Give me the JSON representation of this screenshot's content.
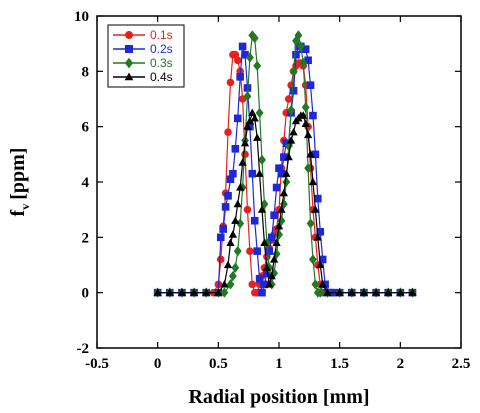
{
  "chart_data": {
    "type": "line",
    "xlabel": "Radial position [mm]",
    "ylabel": "f",
    "ylabel_sub": "v",
    "ylabel_unit": "[ppm]",
    "xlim": [
      -0.5,
      2.5
    ],
    "ylim": [
      -2,
      10
    ],
    "xticks": [
      -0.5,
      0,
      0.5,
      1,
      1.5,
      2,
      2.5
    ],
    "xtick_labels": [
      "-0.5",
      "0",
      "0.5",
      "1",
      "1.5",
      "2",
      "2.5"
    ],
    "yticks": [
      -2,
      0,
      2,
      4,
      6,
      8,
      10
    ],
    "ytick_labels": [
      "-2",
      "0",
      "2",
      "4",
      "6",
      "8",
      "10"
    ],
    "grid": false,
    "legend_position": "top-left",
    "series": [
      {
        "name": "0.1s",
        "color": "#e8201e",
        "marker": "circle",
        "x": [
          0,
          0.1,
          0.2,
          0.3,
          0.4,
          0.46,
          0.5,
          0.52,
          0.54,
          0.56,
          0.58,
          0.6,
          0.62,
          0.64,
          0.66,
          0.68,
          0.7,
          0.72,
          0.74,
          0.76,
          0.78,
          0.8,
          0.82,
          0.84,
          0.86,
          0.88,
          0.9,
          0.92,
          0.94,
          0.96,
          0.98,
          1.0,
          1.02,
          1.04,
          1.06,
          1.08,
          1.1,
          1.12,
          1.14,
          1.16,
          1.18,
          1.2,
          1.22,
          1.24,
          1.26,
          1.28,
          1.3,
          1.32,
          1.34,
          1.36,
          1.4,
          1.5,
          1.6,
          1.7,
          1.8,
          1.9,
          2.0,
          2.1
        ],
        "y": [
          0,
          0,
          0,
          0,
          0,
          0,
          0.3,
          1.2,
          2.4,
          3.6,
          5.8,
          7.6,
          8.6,
          8.6,
          8.4,
          8.0,
          7.0,
          5.0,
          3.0,
          1.5,
          0.3,
          0,
          0,
          0.3,
          0.6,
          0.9,
          1.3,
          1.6,
          1.9,
          2.1,
          2.3,
          3.0,
          4.5,
          5.5,
          6.5,
          7.0,
          7.5,
          8.0,
          8.2,
          8.3,
          8.3,
          8.2,
          7.5,
          6.0,
          4.5,
          3.0,
          2.0,
          1.0,
          0.3,
          0,
          0,
          0,
          0,
          0,
          0,
          0,
          0,
          0
        ]
      },
      {
        "name": "0.2s",
        "color": "#1e28d8",
        "marker": "square",
        "x": [
          0,
          0.1,
          0.2,
          0.3,
          0.4,
          0.5,
          0.52,
          0.54,
          0.56,
          0.58,
          0.6,
          0.62,
          0.64,
          0.66,
          0.68,
          0.7,
          0.72,
          0.74,
          0.76,
          0.78,
          0.8,
          0.82,
          0.84,
          0.86,
          0.88,
          0.9,
          0.92,
          0.94,
          0.96,
          0.98,
          1.0,
          1.02,
          1.04,
          1.06,
          1.08,
          1.1,
          1.12,
          1.14,
          1.16,
          1.18,
          1.2,
          1.22,
          1.24,
          1.26,
          1.28,
          1.3,
          1.32,
          1.34,
          1.36,
          1.38,
          1.4,
          1.42,
          1.44,
          1.5,
          1.6,
          1.7,
          1.8,
          1.9,
          2.0,
          2.1
        ],
        "y": [
          0,
          0,
          0,
          0,
          0,
          0,
          2.0,
          2.3,
          3.1,
          3.5,
          4.1,
          4.3,
          5.2,
          6.3,
          7.8,
          8.9,
          8.6,
          7.4,
          6.0,
          4.3,
          2.6,
          1.5,
          0.5,
          0,
          0.3,
          0.7,
          1.5,
          2.0,
          2.8,
          3.8,
          4.5,
          4.3,
          4.9,
          5.4,
          5.4,
          6.5,
          7.3,
          8.6,
          8.9,
          8.9,
          8.8,
          8.8,
          8.4,
          7.5,
          6.4,
          5.0,
          3.4,
          2.2,
          1.2,
          0.3,
          0,
          0,
          0,
          0,
          0,
          0,
          0,
          0,
          0,
          0
        ]
      },
      {
        "name": "0.3s",
        "color": "#217a21",
        "marker": "diamond",
        "x": [
          0,
          0.1,
          0.2,
          0.3,
          0.4,
          0.5,
          0.55,
          0.6,
          0.62,
          0.64,
          0.66,
          0.68,
          0.7,
          0.72,
          0.74,
          0.76,
          0.78,
          0.8,
          0.82,
          0.84,
          0.86,
          0.88,
          0.9,
          0.92,
          0.94,
          0.96,
          0.98,
          1.0,
          1.02,
          1.04,
          1.06,
          1.08,
          1.1,
          1.12,
          1.14,
          1.16,
          1.18,
          1.2,
          1.22,
          1.24,
          1.26,
          1.28,
          1.3,
          1.32,
          1.34,
          1.4,
          1.5,
          1.6,
          1.7,
          1.8,
          1.9,
          2.0,
          2.1
        ],
        "y": [
          0,
          0,
          0,
          0,
          0,
          0,
          0,
          0.3,
          0.6,
          0.9,
          1.5,
          2.5,
          3.8,
          5.5,
          7.1,
          8.5,
          9.3,
          9.2,
          8.2,
          6.5,
          4.8,
          3.2,
          1.8,
          0.9,
          0.3,
          0.7,
          1.4,
          2.1,
          2.6,
          3.2,
          4.0,
          5.3,
          6.6,
          8.0,
          9.1,
          9.3,
          8.9,
          8.3,
          6.7,
          4.5,
          2.5,
          1.2,
          0.3,
          0,
          0,
          0,
          0,
          0,
          0,
          0,
          0,
          0,
          0
        ]
      },
      {
        "name": "0.4s",
        "color": "#000000",
        "marker": "triangle",
        "x": [
          0,
          0.1,
          0.2,
          0.3,
          0.4,
          0.5,
          0.55,
          0.58,
          0.6,
          0.62,
          0.64,
          0.66,
          0.68,
          0.7,
          0.72,
          0.74,
          0.76,
          0.78,
          0.8,
          0.82,
          0.84,
          0.86,
          0.88,
          0.9,
          0.92,
          0.94,
          0.96,
          0.98,
          1.0,
          1.02,
          1.04,
          1.06,
          1.08,
          1.1,
          1.12,
          1.14,
          1.16,
          1.18,
          1.2,
          1.22,
          1.24,
          1.26,
          1.28,
          1.3,
          1.32,
          1.34,
          1.36,
          1.4,
          1.5,
          1.6,
          1.7,
          1.8,
          1.9,
          2.0,
          2.1
        ],
        "y": [
          0,
          0,
          0,
          0,
          0,
          0,
          0.3,
          1.0,
          1.8,
          2.1,
          2.6,
          3.2,
          3.8,
          4.7,
          5.4,
          6.0,
          6.2,
          6.5,
          6.3,
          5.6,
          4.3,
          3.0,
          1.8,
          0.9,
          0.3,
          0.6,
          1.2,
          1.8,
          2.4,
          3.0,
          3.6,
          4.3,
          4.9,
          5.5,
          5.8,
          6.2,
          6.3,
          6.4,
          6.4,
          6.1,
          5.7,
          5.0,
          4.0,
          3.0,
          2.0,
          1.0,
          0.3,
          0,
          0,
          0,
          0,
          0,
          0,
          0,
          0
        ]
      }
    ]
  }
}
